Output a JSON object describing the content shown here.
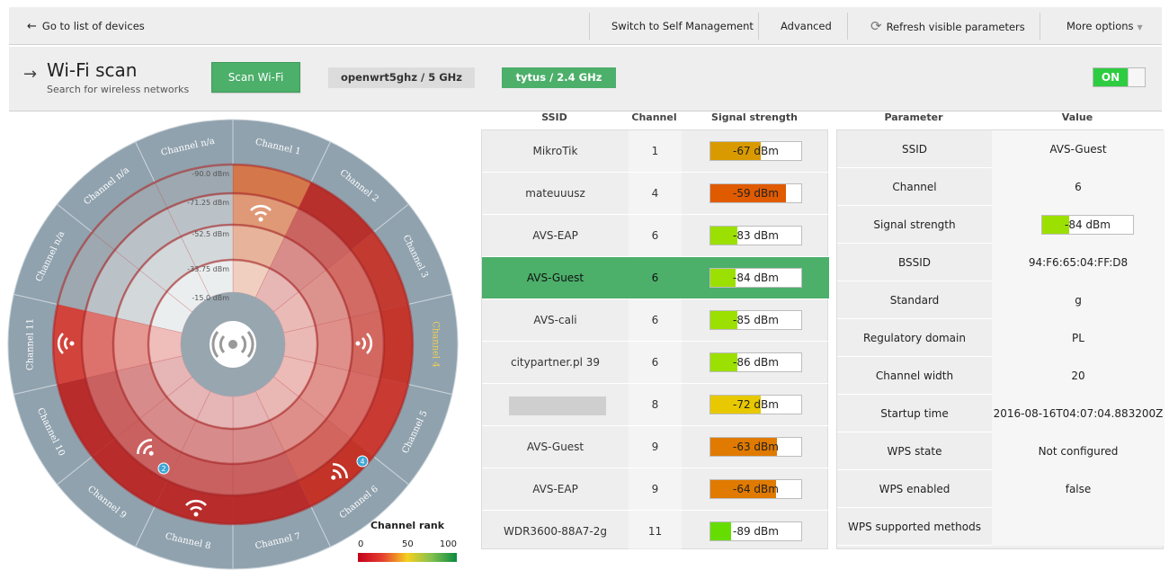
{
  "nav": {
    "back_label": "Go to list of devices",
    "self_management_label": "Switch to Self Management",
    "advanced_label": "Advanced",
    "refresh_label": "Refresh visible parameters",
    "more_label": "More options"
  },
  "header": {
    "title": "Wi-Fi scan",
    "subtitle": "Search for wireless networks",
    "scan_button": "Scan Wi-Fi",
    "radio_tabs": [
      "openwrt5ghz / 5 GHz",
      "tytus / 2.4 GHz"
    ],
    "active_tab": "tytus / 2.4 GHz",
    "toggle_label": "ON"
  },
  "wheel": {
    "center_icon": "wifi-broadcast-icon",
    "channels": [
      "Channel 1",
      "Channel 2",
      "Channel 3",
      "Channel 4",
      "Channel 5",
      "Channel 6",
      "Channel 7",
      "Channel 8",
      "Channel 9",
      "Channel 10",
      "Channel 11",
      "Channel n/a",
      "Channel n/a",
      "Channel n/a"
    ],
    "highlighted_channel": "Channel 4",
    "ring_labels": [
      "-90.0 dBm",
      "-71.25 dBm",
      "-52.5 dBm",
      "-33.75 dBm",
      "-15.0 dBm"
    ],
    "network_badges": [
      {
        "channel": "Channel 9",
        "count": "2"
      },
      {
        "channel": "Channel 6",
        "count": "4"
      }
    ]
  },
  "legend": {
    "title": "Channel rank",
    "ticks": [
      "0",
      "50",
      "100"
    ]
  },
  "scan": {
    "headers": {
      "ssid": "SSID",
      "channel": "Channel",
      "signal": "Signal strength"
    },
    "rows": [
      {
        "ssid": "MikroTik",
        "channel": "1",
        "signal": "-67 dBm",
        "level": 0.55,
        "color": "#d99a00"
      },
      {
        "ssid": "mateuuusz",
        "channel": "4",
        "signal": "-59 dBm",
        "level": 0.83,
        "color": "#e05a00"
      },
      {
        "ssid": "AVS-EAP",
        "channel": "6",
        "signal": "-83 dBm",
        "level": 0.3,
        "color": "#9be000"
      },
      {
        "ssid": "AVS-Guest",
        "channel": "6",
        "signal": "-84 dBm",
        "level": 0.28,
        "color": "#9be000",
        "selected": true
      },
      {
        "ssid": "AVS-cali",
        "channel": "6",
        "signal": "-85 dBm",
        "level": 0.3,
        "color": "#9be000"
      },
      {
        "ssid": "citypartner.pl 39",
        "channel": "6",
        "signal": "-86 dBm",
        "level": 0.3,
        "color": "#9be000"
      },
      {
        "ssid": "",
        "channel": "8",
        "signal": "-72 dBm",
        "level": 0.55,
        "color": "#e8c800",
        "hidden": true
      },
      {
        "ssid": "AVS-Guest",
        "channel": "9",
        "signal": "-63 dBm",
        "level": 0.73,
        "color": "#e07a00"
      },
      {
        "ssid": "AVS-EAP",
        "channel": "9",
        "signal": "-64 dBm",
        "level": 0.72,
        "color": "#e07a00"
      },
      {
        "ssid": "WDR3600-88A7-2g",
        "channel": "11",
        "signal": "-89 dBm",
        "level": 0.23,
        "color": "#66dd00"
      }
    ]
  },
  "params": {
    "headers": {
      "param": "Parameter",
      "value": "Value"
    },
    "rows": [
      {
        "name": "SSID",
        "value": "AVS-Guest"
      },
      {
        "name": "Channel",
        "value": "6"
      },
      {
        "name": "Signal strength",
        "value": "-84 dBm",
        "level": 0.3,
        "color": "#9be000",
        "bar": true
      },
      {
        "name": "BSSID",
        "value": "94:F6:65:04:FF:D8"
      },
      {
        "name": "Standard",
        "value": "g"
      },
      {
        "name": "Regulatory domain",
        "value": "PL"
      },
      {
        "name": "Channel width",
        "value": "20"
      },
      {
        "name": "Startup time",
        "value": "2016-08-16T04:07:04.883200Z"
      },
      {
        "name": "WPS state",
        "value": "Not configured"
      },
      {
        "name": "WPS enabled",
        "value": "false"
      },
      {
        "name": "WPS supported methods",
        "value": ""
      }
    ]
  }
}
